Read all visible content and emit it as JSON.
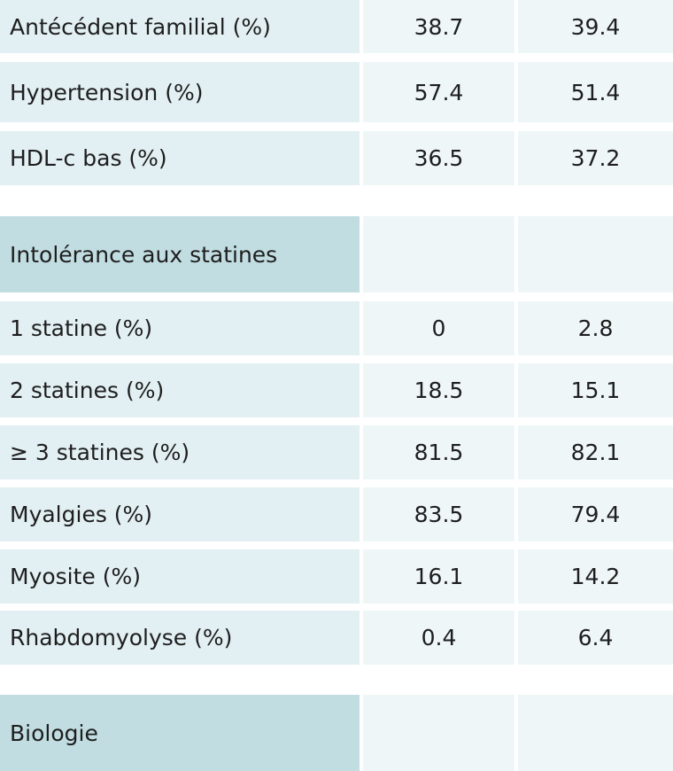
{
  "rows_top": [
    {
      "label": "Antécédent familial (%)",
      "v1": "38.7",
      "v2": "39.4"
    },
    {
      "label": "Hypertension (%)",
      "v1": "57.4",
      "v2": "51.4"
    },
    {
      "label": "HDL-c bas (%)",
      "v1": "36.5",
      "v2": "37.2"
    }
  ],
  "section_intolerance": {
    "label": "Intolérance aux statines"
  },
  "rows_intolerance": [
    {
      "label": "1 statine (%)",
      "v1": "0",
      "v2": "2.8"
    },
    {
      "label": "2 statines (%)",
      "v1": "18.5",
      "v2": "15.1"
    },
    {
      "label": "≥ 3 statines (%)",
      "v1": "81.5",
      "v2": "82.1"
    },
    {
      "label": "Myalgies (%)",
      "v1": "83.5",
      "v2": "79.4"
    },
    {
      "label": "Myosite (%)",
      "v1": "16.1",
      "v2": "14.2"
    },
    {
      "label": "Rhabdomyolyse (%)",
      "v1": "0.4",
      "v2": "6.4"
    }
  ],
  "section_biologie": {
    "label": "Biologie"
  }
}
